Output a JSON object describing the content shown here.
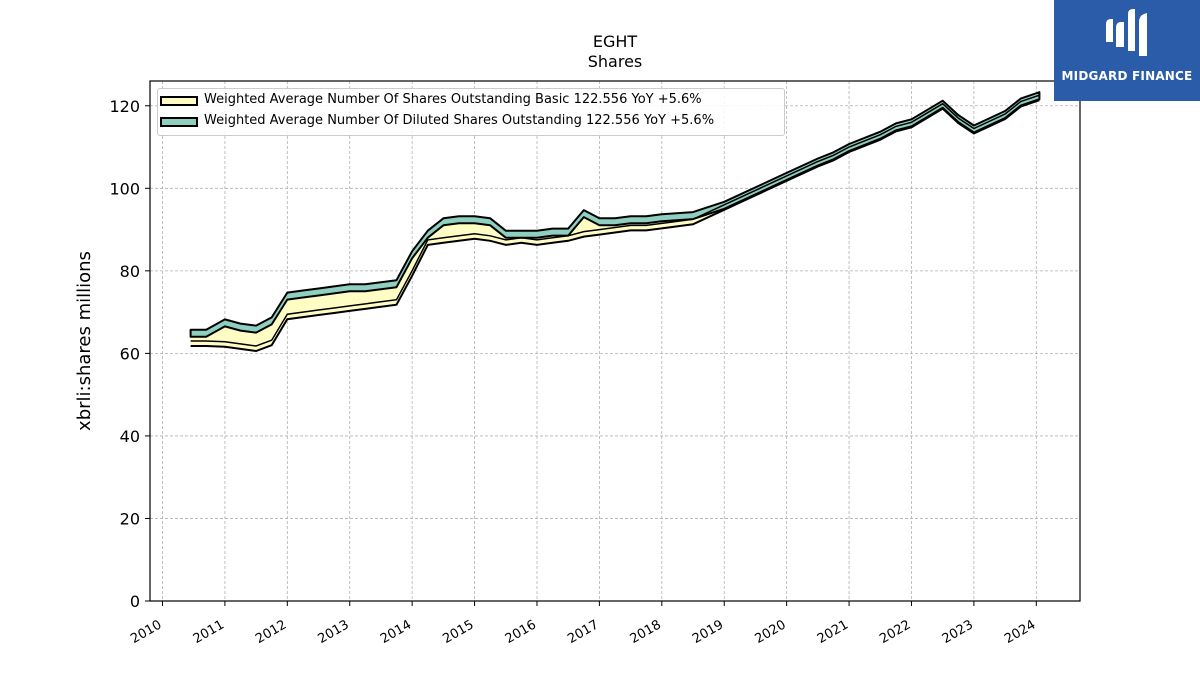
{
  "brand": {
    "name": "MIDGARD FINANCE",
    "bg_color": "#2a5caa"
  },
  "chart_data": {
    "type": "area",
    "title": "EGHT",
    "subtitle": "Shares",
    "ylabel": "xbrli:shares millions",
    "xlabel": "",
    "xlim": [
      2009.8,
      2024.7
    ],
    "ylim": [
      0,
      126
    ],
    "x_ticks": [
      "2010",
      "2011",
      "2012",
      "2013",
      "2014",
      "2015",
      "2016",
      "2017",
      "2018",
      "2019",
      "2020",
      "2021",
      "2022",
      "2023",
      "2024"
    ],
    "y_ticks": [
      0,
      20,
      40,
      60,
      80,
      100,
      120
    ],
    "grid": true,
    "legend_position": "top-left",
    "series": [
      {
        "name": "Weighted Average Number Of Shares Outstanding Basic",
        "legend_text": "Weighted Average Number Of Shares Outstanding Basic  122.556 YoY +5.6%",
        "color": "#fffcc4",
        "x": [
          2010.45,
          2010.7,
          2011.0,
          2011.25,
          2011.5,
          2011.75,
          2012.0,
          2012.25,
          2012.5,
          2012.75,
          2013.0,
          2013.25,
          2013.5,
          2013.75,
          2014.0,
          2014.25,
          2014.5,
          2014.75,
          2015.0,
          2015.25,
          2015.5,
          2015.75,
          2016.0,
          2016.25,
          2016.5,
          2016.75,
          2017.0,
          2017.25,
          2017.5,
          2017.75,
          2018.0,
          2018.5,
          2019.0,
          2019.5,
          2020.0,
          2020.5,
          2020.75,
          2021.0,
          2021.5,
          2021.75,
          2022.0,
          2022.5,
          2022.75,
          2023.0,
          2023.5,
          2023.75,
          2024.05
        ],
        "values": [
          63.0,
          63.0,
          62.8,
          62.3,
          61.8,
          63.2,
          69.5,
          70.0,
          70.5,
          71.0,
          71.5,
          72.0,
          72.5,
          73.0,
          80.0,
          87.5,
          88.0,
          88.5,
          89.0,
          88.5,
          87.5,
          88.0,
          87.5,
          88.0,
          88.5,
          89.5,
          90.0,
          90.5,
          91.0,
          91.0,
          91.5,
          92.5,
          96.0,
          99.5,
          103.0,
          106.5,
          108.0,
          110.0,
          113.0,
          115.0,
          116.0,
          120.5,
          117.0,
          114.5,
          118.0,
          121.0,
          122.556
        ]
      },
      {
        "name": "Weighted Average Number Of Diluted Shares Outstanding",
        "legend_text": "Weighted Average Number Of Diluted Shares Outstanding  122.556 YoY +5.6%",
        "color": "#8ecfbf",
        "x": [
          2010.45,
          2010.7,
          2011.0,
          2011.25,
          2011.5,
          2011.75,
          2012.0,
          2012.25,
          2012.5,
          2012.75,
          2013.0,
          2013.25,
          2013.5,
          2013.75,
          2014.0,
          2014.25,
          2014.5,
          2014.75,
          2015.0,
          2015.25,
          2015.5,
          2015.75,
          2016.0,
          2016.25,
          2016.5,
          2016.75,
          2017.0,
          2017.25,
          2017.5,
          2017.75,
          2018.0,
          2018.5,
          2019.0,
          2019.5,
          2020.0,
          2020.5,
          2020.75,
          2021.0,
          2021.5,
          2021.75,
          2022.0,
          2022.5,
          2022.75,
          2023.0,
          2023.5,
          2023.75,
          2024.05
        ],
        "values": [
          65.0,
          65.0,
          67.5,
          66.5,
          66.0,
          68.0,
          74.0,
          74.5,
          75.0,
          75.5,
          76.0,
          76.0,
          76.5,
          77.0,
          84.0,
          89.0,
          92.0,
          92.5,
          92.5,
          92.0,
          89.0,
          89.0,
          89.0,
          89.5,
          89.5,
          94.0,
          92.0,
          92.0,
          92.5,
          92.5,
          93.0,
          93.5,
          96.0,
          99.5,
          103.0,
          106.5,
          108.0,
          110.0,
          113.0,
          115.0,
          116.0,
          120.5,
          117.0,
          114.5,
          118.0,
          121.0,
          122.556
        ]
      }
    ]
  }
}
